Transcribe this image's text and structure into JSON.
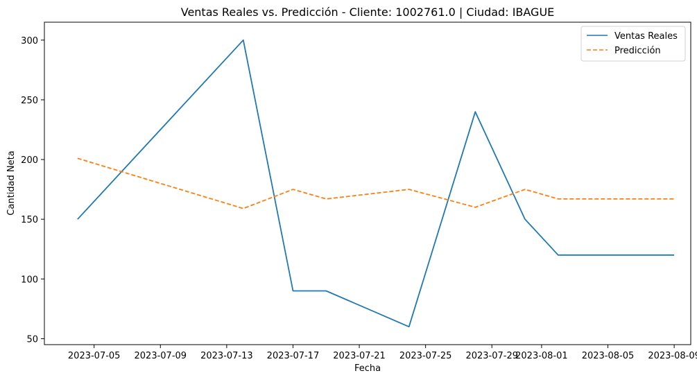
{
  "chart_data": {
    "type": "line",
    "title": "Ventas Reales vs. Predicción - Cliente: 1002761.0 | Ciudad: IBAGUE",
    "xlabel": "Fecha",
    "ylabel": "Cantidad Neta",
    "x_ticks": [
      "2023-07-05",
      "2023-07-09",
      "2023-07-13",
      "2023-07-17",
      "2023-07-21",
      "2023-07-25",
      "2023-07-29",
      "2023-08-01",
      "2023-08-05",
      "2023-08-09"
    ],
    "y_ticks": [
      "50",
      "100",
      "150",
      "200",
      "250",
      "300"
    ],
    "xlim": [
      "2023-07-02",
      "2023-08-10"
    ],
    "ylim": [
      45,
      315
    ],
    "legend_position": "top-right",
    "grid": false,
    "series": [
      {
        "name": "Ventas Reales",
        "color": "#1f77b4",
        "style": "solid",
        "points": [
          {
            "x": "2023-07-04",
            "y": 150
          },
          {
            "x": "2023-07-14",
            "y": 300
          },
          {
            "x": "2023-07-17",
            "y": 90
          },
          {
            "x": "2023-07-19",
            "y": 90
          },
          {
            "x": "2023-07-24",
            "y": 60
          },
          {
            "x": "2023-07-28",
            "y": 240
          },
          {
            "x": "2023-07-31",
            "y": 150
          },
          {
            "x": "2023-08-02",
            "y": 120
          },
          {
            "x": "2023-08-09",
            "y": 120
          }
        ]
      },
      {
        "name": "Predicción",
        "color": "#ff7f0e",
        "style": "dashed",
        "points": [
          {
            "x": "2023-07-04",
            "y": 201
          },
          {
            "x": "2023-07-14",
            "y": 159
          },
          {
            "x": "2023-07-17",
            "y": 175
          },
          {
            "x": "2023-07-19",
            "y": 167
          },
          {
            "x": "2023-07-24",
            "y": 175
          },
          {
            "x": "2023-07-28",
            "y": 160
          },
          {
            "x": "2023-07-31",
            "y": 175
          },
          {
            "x": "2023-08-02",
            "y": 167
          },
          {
            "x": "2023-08-09",
            "y": 167
          }
        ]
      }
    ]
  }
}
